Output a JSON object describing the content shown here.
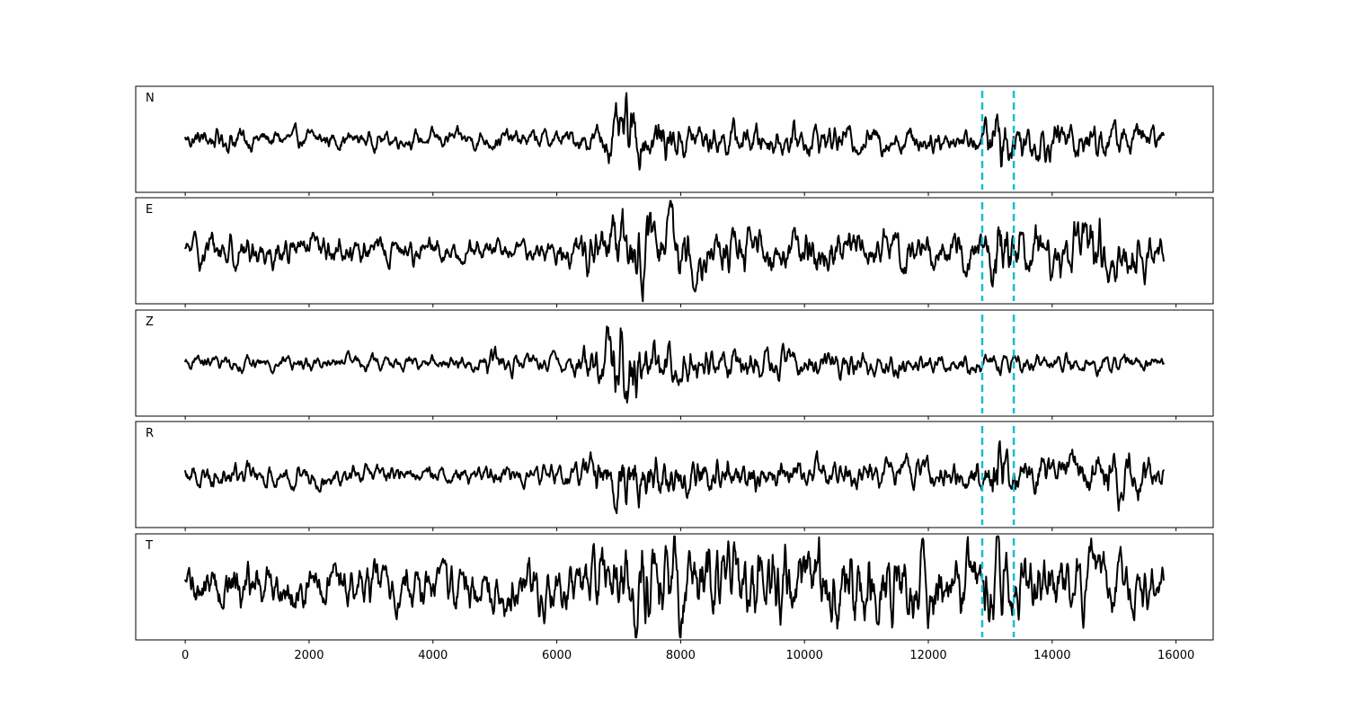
{
  "chart_data": {
    "type": "line",
    "title": "",
    "xlabel": "",
    "ylabel": "",
    "xlim": [
      -800,
      16600
    ],
    "x_ticks": [
      0,
      2000,
      4000,
      6000,
      8000,
      10000,
      12000,
      14000,
      16000
    ],
    "x_tick_labels": [
      "0",
      "2000",
      "4000",
      "6000",
      "8000",
      "10000",
      "12000",
      "14000",
      "16000"
    ],
    "x_range": [
      0,
      15800
    ],
    "grid": false,
    "legend": "none",
    "colors": {
      "trace": "#000000",
      "marker": "#17becf"
    },
    "markers": [
      12870,
      13380
    ],
    "series": [
      {
        "name": "N",
        "ylim": [
          -1.05,
          1.05
        ],
        "x": [
          0,
          200,
          400,
          700,
          1000,
          1500,
          2000,
          2500,
          3000,
          3500,
          4000,
          4500,
          5000,
          5500,
          6000,
          6400,
          6700,
          7000,
          7150,
          7250,
          7400,
          7700,
          8000,
          8500,
          9000,
          9500,
          10000,
          10500,
          11000,
          11500,
          12000,
          12500,
          12870,
          13000,
          13100,
          13200,
          13300,
          13380,
          13600,
          13800,
          14000,
          14300,
          14600,
          14800,
          15000,
          15300,
          15600,
          15800
        ],
        "amplitude": [
          0.2,
          0.25,
          0.28,
          0.3,
          0.25,
          0.2,
          0.2,
          0.2,
          0.2,
          0.18,
          0.2,
          0.2,
          0.22,
          0.2,
          0.2,
          0.25,
          0.35,
          0.6,
          0.9,
          0.7,
          0.5,
          0.5,
          0.45,
          0.35,
          0.35,
          0.35,
          0.35,
          0.35,
          0.3,
          0.3,
          0.3,
          0.25,
          0.3,
          0.6,
          0.95,
          0.8,
          0.5,
          0.5,
          0.45,
          0.45,
          0.45,
          0.45,
          0.45,
          0.45,
          0.4,
          0.35,
          0.3,
          0.25
        ]
      },
      {
        "name": "E",
        "ylim": [
          -1.05,
          1.05
        ],
        "x": [
          0,
          200,
          500,
          1000,
          1500,
          2000,
          2500,
          3000,
          3500,
          4000,
          4500,
          5000,
          5500,
          6000,
          6400,
          6800,
          7000,
          7300,
          7600,
          8000,
          8500,
          9000,
          9500,
          10000,
          10500,
          11000,
          11500,
          12000,
          12500,
          12870,
          13000,
          13100,
          13200,
          13300,
          13380,
          13600,
          13800,
          14000,
          14300,
          14600,
          14800,
          15000,
          15300,
          15600,
          15800
        ],
        "amplitude": [
          0.2,
          0.3,
          0.35,
          0.3,
          0.3,
          0.3,
          0.3,
          0.25,
          0.25,
          0.25,
          0.22,
          0.2,
          0.2,
          0.25,
          0.35,
          0.5,
          0.65,
          0.7,
          0.65,
          0.6,
          0.45,
          0.4,
          0.4,
          0.4,
          0.4,
          0.35,
          0.35,
          0.35,
          0.35,
          0.4,
          0.6,
          0.95,
          0.85,
          0.6,
          0.5,
          0.55,
          0.55,
          0.5,
          0.5,
          0.55,
          0.65,
          0.55,
          0.45,
          0.4,
          0.3
        ]
      },
      {
        "name": "Z",
        "ylim": [
          -1.05,
          1.05
        ],
        "x": [
          0,
          200,
          500,
          1000,
          1500,
          2000,
          2500,
          3000,
          3500,
          4000,
          4500,
          4800,
          5000,
          5200,
          5500,
          6000,
          6300,
          6600,
          6900,
          7000,
          7150,
          7300,
          7500,
          7800,
          8000,
          8500,
          9000,
          9500,
          10000,
          10500,
          11000,
          11500,
          12000,
          12500,
          12870,
          13000,
          13100,
          13200,
          13300,
          13380,
          13600,
          14000,
          14400,
          14800,
          15000,
          15300,
          15600,
          15800
        ],
        "amplitude": [
          0.12,
          0.15,
          0.15,
          0.15,
          0.15,
          0.15,
          0.15,
          0.15,
          0.15,
          0.15,
          0.15,
          0.2,
          0.3,
          0.25,
          0.15,
          0.18,
          0.25,
          0.45,
          0.8,
          1.0,
          0.9,
          0.65,
          0.5,
          0.4,
          0.4,
          0.35,
          0.3,
          0.3,
          0.3,
          0.3,
          0.25,
          0.25,
          0.2,
          0.2,
          0.2,
          0.25,
          0.3,
          0.25,
          0.2,
          0.2,
          0.2,
          0.18,
          0.18,
          0.2,
          0.22,
          0.18,
          0.15,
          0.12
        ]
      },
      {
        "name": "R",
        "ylim": [
          -1.05,
          1.05
        ],
        "x": [
          0,
          200,
          500,
          1000,
          1500,
          2000,
          2500,
          3000,
          3500,
          4000,
          4500,
          5000,
          5500,
          6000,
          6400,
          6800,
          7000,
          7300,
          7600,
          8000,
          8500,
          9000,
          9500,
          10000,
          10500,
          11000,
          11500,
          12000,
          12500,
          12870,
          13000,
          13100,
          13200,
          13300,
          13380,
          13600,
          13800,
          14000,
          14300,
          14600,
          14800,
          15000,
          15300,
          15600,
          15800
        ],
        "amplitude": [
          0.2,
          0.25,
          0.25,
          0.22,
          0.22,
          0.22,
          0.2,
          0.2,
          0.18,
          0.18,
          0.18,
          0.2,
          0.2,
          0.22,
          0.3,
          0.5,
          0.6,
          0.55,
          0.5,
          0.45,
          0.4,
          0.35,
          0.3,
          0.3,
          0.3,
          0.3,
          0.28,
          0.28,
          0.3,
          0.35,
          0.55,
          1.0,
          0.85,
          0.5,
          0.4,
          0.45,
          0.45,
          0.4,
          0.4,
          0.45,
          0.6,
          0.55,
          0.45,
          0.35,
          0.25
        ]
      },
      {
        "name": "T",
        "ylim": [
          -1.05,
          1.05
        ],
        "x": [
          0,
          200,
          500,
          1000,
          1500,
          2000,
          2500,
          3000,
          3500,
          4000,
          4500,
          5000,
          5500,
          6000,
          6500,
          7000,
          7200,
          7500,
          7700,
          8000,
          8500,
          9000,
          9500,
          10000,
          10500,
          11000,
          11500,
          12000,
          12500,
          12870,
          13000,
          13100,
          13200,
          13300,
          13380,
          13600,
          14000,
          14400,
          14800,
          15000,
          15300,
          15600,
          15800
        ],
        "amplitude": [
          0.3,
          0.4,
          0.45,
          0.45,
          0.45,
          0.45,
          0.45,
          0.45,
          0.45,
          0.45,
          0.45,
          0.5,
          0.5,
          0.5,
          0.6,
          0.8,
          0.9,
          0.85,
          0.9,
          0.8,
          0.75,
          0.75,
          0.75,
          0.75,
          0.8,
          0.75,
          0.7,
          0.7,
          0.65,
          0.65,
          0.75,
          0.95,
          0.8,
          0.6,
          0.6,
          0.6,
          0.6,
          0.6,
          0.6,
          0.55,
          0.5,
          0.45,
          0.4
        ]
      }
    ]
  }
}
